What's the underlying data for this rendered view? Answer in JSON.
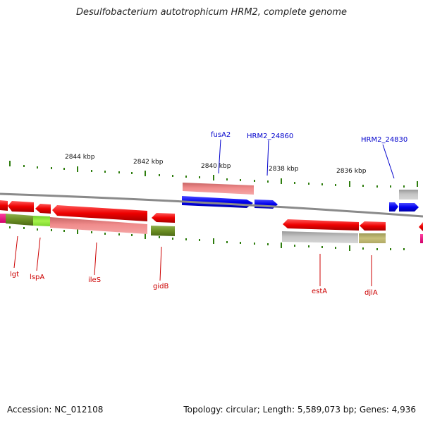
{
  "title": "Desulfobacterium autotrophicum HRM2, complete genome",
  "accession": "Accession: NC_012108",
  "summary": "Topology: circular; Length: 5,589,073 bp; Genes: 4,936",
  "colors": {
    "forward_cds": "#0000ee",
    "reverse_cds": "#ee0000",
    "ticks": "#2e7d0e",
    "backbone": "#888888",
    "forward_label": "#0000cc",
    "reverse_label": "#cc0000"
  },
  "scale_labels": [
    "2844 kbp",
    "2842 kbp",
    "2840 kbp",
    "2838 kbp",
    "2836 kbp"
  ],
  "forward_labels": [
    "fusA2",
    "HRM2_24860",
    "HRM2_24830"
  ],
  "reverse_labels": [
    "lgt",
    "lspA",
    "ileS",
    "gidB",
    "estA",
    "djlA"
  ]
}
